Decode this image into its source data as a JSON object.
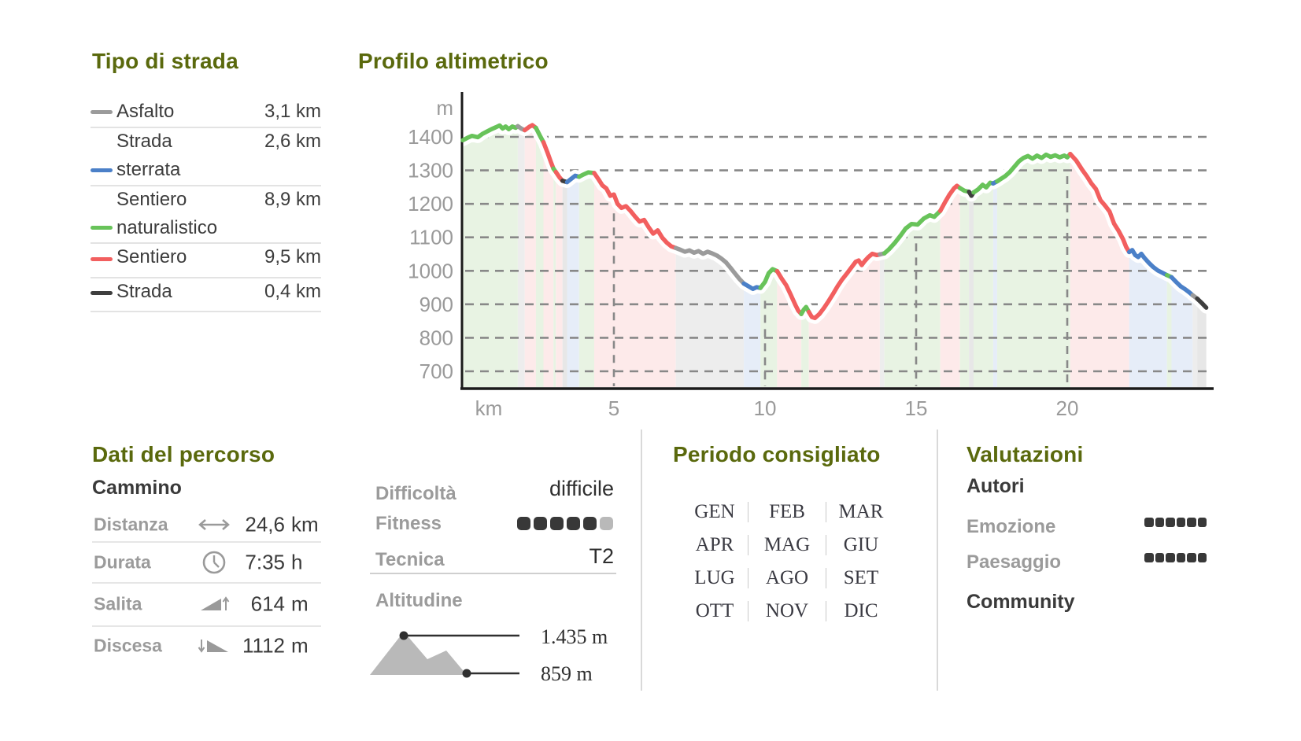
{
  "colors": {
    "title_olive": "#5a690d",
    "text_dark": "#3a3a3a",
    "text_gray": "#9b9b9b",
    "axis_black": "#1a1a1a",
    "grid_gray": "#888888",
    "separator": "#e3e3e3",
    "rating_dot_dark": "#383838",
    "rating_dot_light": "#b9b9b9",
    "road_colors": {
      "asfalto": "#9b9b9b",
      "sterrata": "#4b80c8",
      "naturalistico": "#68c35a",
      "sentiero": "#f25f5f",
      "strada": "#3e3e3e"
    },
    "road_fills": {
      "asfalto": "#ededed",
      "sterrata": "#e6edf8",
      "naturalistico": "#e8f3e3",
      "sentiero": "#fdeaea",
      "strada": "#e7e7e7"
    }
  },
  "road_types": {
    "title": "Tipo di strada",
    "rows": [
      {
        "label": "Asfalto",
        "value": "3,1 km",
        "type": "asfalto"
      },
      {
        "label": "Strada sterrata",
        "line1": "Strada",
        "line2": "sterrata",
        "value": "2,6 km",
        "type": "sterrata"
      },
      {
        "label": "Sentiero naturalistico",
        "line1": "Sentiero",
        "line2": "naturalistico",
        "value": "8,9 km",
        "type": "naturalistico"
      },
      {
        "label": "Sentiero",
        "value": "9,5 km",
        "type": "sentiero"
      },
      {
        "label": "Strada",
        "value": "0,4 km",
        "type": "strada"
      }
    ]
  },
  "chart_data": {
    "type": "area",
    "title": "Profilo altimetrico",
    "y_unit": "m",
    "x_unit": "km",
    "yticks": [
      1400,
      1300,
      1200,
      1100,
      1000,
      900,
      800,
      700
    ],
    "xticks": [
      5,
      10,
      15,
      20
    ],
    "xlim": [
      0,
      24.6
    ],
    "ylim": [
      650,
      1480
    ],
    "grid": "dashed",
    "max_elevation": 1435,
    "min_elevation": 859,
    "legend_types": [
      "asfalto",
      "sterrata",
      "naturalistico",
      "sentiero",
      "strada"
    ],
    "segments": [
      {
        "type": "naturalistico",
        "points": [
          [
            0,
            1390
          ],
          [
            0.15,
            1397
          ],
          [
            0.3,
            1403
          ],
          [
            0.5,
            1399
          ],
          [
            0.65,
            1409
          ],
          [
            0.8,
            1416
          ],
          [
            0.95,
            1423
          ],
          [
            1.1,
            1429
          ],
          [
            1.22,
            1434
          ],
          [
            1.32,
            1425
          ],
          [
            1.42,
            1431
          ],
          [
            1.52,
            1423
          ],
          [
            1.64,
            1431
          ],
          [
            1.75,
            1427
          ],
          [
            1.82,
            1432
          ]
        ]
      },
      {
        "type": "asfalto",
        "points": [
          [
            1.82,
            1432
          ],
          [
            1.95,
            1424
          ],
          [
            2.05,
            1420
          ]
        ]
      },
      {
        "type": "sentiero",
        "points": [
          [
            2.05,
            1420
          ],
          [
            2.2,
            1430
          ],
          [
            2.3,
            1435
          ],
          [
            2.42,
            1427
          ]
        ]
      },
      {
        "type": "naturalistico",
        "points": [
          [
            2.42,
            1427
          ],
          [
            2.55,
            1404
          ],
          [
            2.67,
            1384
          ]
        ]
      },
      {
        "type": "sentiero",
        "points": [
          [
            2.67,
            1384
          ],
          [
            2.8,
            1354
          ],
          [
            2.92,
            1324
          ],
          [
            3.0,
            1305
          ]
        ]
      },
      {
        "type": "naturalistico",
        "points": [
          [
            3.0,
            1305
          ],
          [
            3.08,
            1295
          ]
        ]
      },
      {
        "type": "sentiero",
        "points": [
          [
            3.08,
            1295
          ],
          [
            3.2,
            1279
          ],
          [
            3.3,
            1269
          ]
        ]
      },
      {
        "type": "strada",
        "points": [
          [
            3.3,
            1269
          ],
          [
            3.45,
            1265
          ]
        ]
      },
      {
        "type": "sterrata",
        "points": [
          [
            3.45,
            1265
          ],
          [
            3.58,
            1274
          ],
          [
            3.72,
            1284
          ],
          [
            3.85,
            1281
          ]
        ]
      },
      {
        "type": "naturalistico",
        "points": [
          [
            3.85,
            1281
          ],
          [
            4.0,
            1288
          ],
          [
            4.15,
            1294
          ],
          [
            4.35,
            1292
          ]
        ]
      },
      {
        "type": "sentiero",
        "points": [
          [
            4.35,
            1292
          ],
          [
            4.5,
            1272
          ],
          [
            4.62,
            1255
          ],
          [
            4.75,
            1246
          ],
          [
            4.88,
            1224
          ],
          [
            5.0,
            1228
          ],
          [
            5.12,
            1200
          ],
          [
            5.25,
            1188
          ],
          [
            5.4,
            1193
          ],
          [
            5.55,
            1179
          ],
          [
            5.7,
            1162
          ],
          [
            5.85,
            1147
          ],
          [
            6.0,
            1152
          ],
          [
            6.15,
            1130
          ],
          [
            6.3,
            1111
          ],
          [
            6.45,
            1121
          ],
          [
            6.6,
            1099
          ],
          [
            6.75,
            1084
          ],
          [
            6.9,
            1073
          ],
          [
            7.05,
            1068
          ]
        ]
      },
      {
        "type": "asfalto",
        "points": [
          [
            7.05,
            1068
          ],
          [
            7.2,
            1063
          ],
          [
            7.35,
            1057
          ],
          [
            7.5,
            1061
          ],
          [
            7.65,
            1054
          ],
          [
            7.8,
            1059
          ],
          [
            7.95,
            1051
          ],
          [
            8.1,
            1057
          ],
          [
            8.25,
            1052
          ],
          [
            8.4,
            1046
          ],
          [
            8.55,
            1037
          ],
          [
            8.7,
            1026
          ],
          [
            8.85,
            1010
          ],
          [
            9.0,
            993
          ],
          [
            9.15,
            976
          ],
          [
            9.3,
            962
          ]
        ]
      },
      {
        "type": "sterrata",
        "points": [
          [
            9.3,
            962
          ],
          [
            9.45,
            954
          ],
          [
            9.6,
            946
          ],
          [
            9.72,
            951
          ],
          [
            9.85,
            949
          ]
        ]
      },
      {
        "type": "naturalistico",
        "points": [
          [
            9.85,
            949
          ],
          [
            10.0,
            967
          ],
          [
            10.12,
            993
          ],
          [
            10.25,
            1005
          ],
          [
            10.4,
            999
          ]
        ]
      },
      {
        "type": "sentiero",
        "points": [
          [
            10.4,
            999
          ],
          [
            10.55,
            977
          ],
          [
            10.7,
            957
          ],
          [
            10.85,
            929
          ],
          [
            11.0,
            899
          ],
          [
            11.1,
            881
          ],
          [
            11.2,
            871
          ]
        ]
      },
      {
        "type": "naturalistico",
        "points": [
          [
            11.2,
            871
          ],
          [
            11.28,
            884
          ],
          [
            11.36,
            892
          ],
          [
            11.45,
            877
          ]
        ]
      },
      {
        "type": "sentiero",
        "points": [
          [
            11.45,
            877
          ],
          [
            11.55,
            862
          ],
          [
            11.65,
            859
          ],
          [
            11.8,
            871
          ],
          [
            11.95,
            889
          ],
          [
            12.1,
            909
          ],
          [
            12.25,
            931
          ],
          [
            12.4,
            954
          ],
          [
            12.55,
            974
          ],
          [
            12.7,
            991
          ],
          [
            12.85,
            1009
          ],
          [
            13.0,
            1027
          ],
          [
            13.1,
            1031
          ],
          [
            13.2,
            1017
          ],
          [
            13.3,
            1029
          ],
          [
            13.42,
            1041
          ],
          [
            13.55,
            1051
          ],
          [
            13.7,
            1047
          ],
          [
            13.8,
            1049
          ]
        ]
      },
      {
        "type": "asfalto",
        "points": [
          [
            13.8,
            1049
          ],
          [
            13.95,
            1052
          ]
        ]
      },
      {
        "type": "naturalistico",
        "points": [
          [
            13.95,
            1052
          ],
          [
            14.1,
            1064
          ],
          [
            14.3,
            1084
          ],
          [
            14.5,
            1107
          ],
          [
            14.65,
            1126
          ],
          [
            14.85,
            1140
          ],
          [
            15.05,
            1138
          ],
          [
            15.25,
            1156
          ],
          [
            15.45,
            1166
          ],
          [
            15.6,
            1161
          ],
          [
            15.8,
            1179
          ]
        ]
      },
      {
        "type": "sentiero",
        "points": [
          [
            15.8,
            1179
          ],
          [
            15.95,
            1204
          ],
          [
            16.1,
            1227
          ],
          [
            16.25,
            1246
          ],
          [
            16.35,
            1254
          ],
          [
            16.45,
            1247
          ]
        ]
      },
      {
        "type": "naturalistico",
        "points": [
          [
            16.45,
            1247
          ],
          [
            16.6,
            1239
          ],
          [
            16.75,
            1236
          ]
        ]
      },
      {
        "type": "strada",
        "points": [
          [
            16.75,
            1236
          ],
          [
            16.83,
            1224
          ],
          [
            16.9,
            1234
          ]
        ]
      },
      {
        "type": "naturalistico",
        "points": [
          [
            16.9,
            1234
          ],
          [
            17.05,
            1243
          ],
          [
            17.2,
            1257
          ],
          [
            17.32,
            1249
          ],
          [
            17.45,
            1263
          ],
          [
            17.55,
            1261
          ]
        ]
      },
      {
        "type": "sterrata",
        "points": [
          [
            17.55,
            1261
          ],
          [
            17.68,
            1267
          ]
        ]
      },
      {
        "type": "naturalistico",
        "points": [
          [
            17.68,
            1267
          ],
          [
            17.8,
            1274
          ],
          [
            17.95,
            1283
          ],
          [
            18.1,
            1295
          ],
          [
            18.25,
            1311
          ],
          [
            18.4,
            1327
          ],
          [
            18.55,
            1337
          ],
          [
            18.7,
            1343
          ],
          [
            18.85,
            1335
          ],
          [
            19.0,
            1344
          ],
          [
            19.15,
            1337
          ],
          [
            19.3,
            1347
          ],
          [
            19.45,
            1340
          ],
          [
            19.6,
            1345
          ],
          [
            19.75,
            1339
          ],
          [
            19.9,
            1344
          ],
          [
            20.0,
            1339
          ],
          [
            20.1,
            1349
          ]
        ]
      },
      {
        "type": "sentiero",
        "points": [
          [
            20.1,
            1349
          ],
          [
            20.3,
            1329
          ],
          [
            20.5,
            1301
          ],
          [
            20.65,
            1282
          ],
          [
            20.8,
            1261
          ],
          [
            20.95,
            1244
          ],
          [
            21.1,
            1211
          ],
          [
            21.25,
            1195
          ],
          [
            21.4,
            1177
          ],
          [
            21.55,
            1141
          ],
          [
            21.7,
            1119
          ],
          [
            21.85,
            1094
          ],
          [
            21.95,
            1071
          ],
          [
            22.05,
            1056
          ]
        ]
      },
      {
        "type": "sterrata",
        "points": [
          [
            22.05,
            1056
          ],
          [
            22.15,
            1062
          ],
          [
            22.25,
            1047
          ],
          [
            22.35,
            1041
          ],
          [
            22.45,
            1051
          ],
          [
            22.55,
            1039
          ],
          [
            22.7,
            1024
          ],
          [
            22.85,
            1011
          ],
          [
            23.0,
            1001
          ],
          [
            23.15,
            994
          ],
          [
            23.3,
            987
          ]
        ]
      },
      {
        "type": "naturalistico",
        "points": [
          [
            23.3,
            987
          ],
          [
            23.45,
            981
          ]
        ]
      },
      {
        "type": "sterrata",
        "points": [
          [
            23.45,
            981
          ],
          [
            23.6,
            967
          ],
          [
            23.75,
            954
          ],
          [
            23.9,
            945
          ],
          [
            24.05,
            935
          ],
          [
            24.15,
            927
          ]
        ]
      },
      {
        "type": "asfalto",
        "points": [
          [
            24.15,
            927
          ],
          [
            24.3,
            917
          ]
        ]
      },
      {
        "type": "strada",
        "points": [
          [
            24.3,
            917
          ],
          [
            24.45,
            904
          ],
          [
            24.6,
            890
          ]
        ]
      }
    ]
  },
  "route_data": {
    "title": "Dati del percorso",
    "subtitle": "Cammino",
    "rows": [
      {
        "label": "Distanza",
        "icon": "distance-arrow",
        "value": "24,6",
        "unit": "km"
      },
      {
        "label": "Durata",
        "icon": "clock",
        "value": "7:35",
        "unit": "h"
      },
      {
        "label": "Salita",
        "icon": "ascent-ramp",
        "value": "614",
        "unit": "m"
      },
      {
        "label": "Discesa",
        "icon": "descent-ramp",
        "value": "1112",
        "unit": "m"
      }
    ]
  },
  "difficulty": {
    "label": "Difficoltà",
    "value": "difficile"
  },
  "fitness": {
    "label": "Fitness",
    "filled": 5,
    "total": 6
  },
  "technique": {
    "label": "Tecnica",
    "value": "T2"
  },
  "altitude": {
    "label": "Altitudine",
    "max": "1.435 m",
    "min": "859 m"
  },
  "period": {
    "title": "Periodo consigliato",
    "months": [
      "GEN",
      "FEB",
      "MAR",
      "APR",
      "MAG",
      "GIU",
      "LUG",
      "AGO",
      "SET",
      "OTT",
      "NOV",
      "DIC"
    ]
  },
  "ratings": {
    "title": "Valutazioni",
    "authors_heading": "Autori",
    "rows": [
      {
        "label": "Emozione",
        "filled": 6,
        "total": 6
      },
      {
        "label": "Paesaggio",
        "filled": 6,
        "total": 6
      }
    ],
    "community_heading": "Community"
  }
}
